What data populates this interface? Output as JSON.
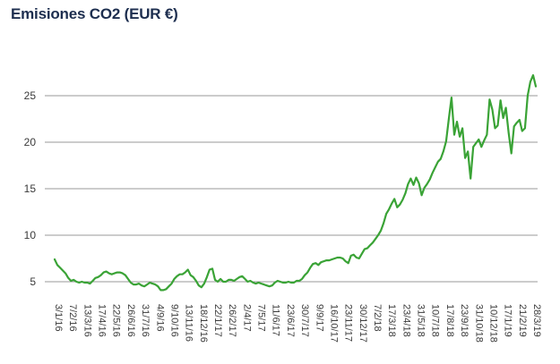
{
  "chart_data": {
    "type": "line",
    "title": "Emisiones CO2 (EUR €)",
    "xlabel": "",
    "ylabel": "",
    "ylim": [
      3,
      28
    ],
    "yticks": [
      5,
      10,
      15,
      20,
      25
    ],
    "grid": true,
    "line_color": "#3aa336",
    "grid_color": "#9a9a9a",
    "xticks": [
      "3/1/16",
      "7/2/16",
      "13/3/16",
      "17/4/16",
      "22/5/16",
      "26/6/16",
      "31/7/16",
      "4/9/16",
      "9/10/16",
      "13/11/16",
      "18/12/16",
      "22/1/17",
      "26/2/17",
      "2/4/17",
      "7/5/17",
      "11/6/17",
      "23/6/17",
      "30/7/17",
      "9/9/17",
      "16/10/17",
      "23/11/17",
      "30/12/17",
      "7/2/18",
      "17/3/18",
      "23/4/18",
      "31/5/18",
      "10/7/18",
      "17/8/18",
      "23/9/18",
      "31/10/18",
      "10/12/18",
      "17/1/19",
      "21/2/19",
      "28/3/19"
    ],
    "series": [
      {
        "values": [
          7.4,
          6.8,
          6.5,
          6.2,
          5.9,
          5.4,
          5.1,
          5.2,
          5.0,
          4.9,
          5.0,
          4.9,
          4.9,
          4.8,
          5.1,
          5.4,
          5.5,
          5.7,
          6.0,
          6.1,
          5.9,
          5.8,
          5.9,
          6.0,
          6.0,
          5.9,
          5.7,
          5.3,
          4.9,
          4.7,
          4.7,
          4.8,
          4.6,
          4.5,
          4.7,
          4.9,
          4.8,
          4.7,
          4.5,
          4.1,
          4.1,
          4.2,
          4.5,
          4.8,
          5.3,
          5.6,
          5.8,
          5.8,
          6.0,
          6.3,
          5.7,
          5.5,
          5.1,
          4.6,
          4.4,
          4.8,
          5.5,
          6.3,
          6.4,
          5.2,
          5.0,
          5.3,
          5.0,
          5.0,
          5.2,
          5.2,
          5.1,
          5.3,
          5.5,
          5.6,
          5.3,
          5.0,
          5.1,
          4.9,
          4.8,
          4.9,
          4.8,
          4.7,
          4.6,
          4.5,
          4.6,
          4.9,
          5.1,
          5.0,
          4.9,
          4.9,
          5.0,
          4.9,
          4.9,
          5.1,
          5.1,
          5.3,
          5.7,
          6.0,
          6.5,
          6.9,
          7.0,
          6.8,
          7.1,
          7.2,
          7.3,
          7.3,
          7.4,
          7.5,
          7.6,
          7.6,
          7.5,
          7.2,
          7.0,
          7.8,
          7.9,
          7.6,
          7.5,
          8.0,
          8.5,
          8.6,
          8.9,
          9.2,
          9.6,
          10.0,
          10.5,
          11.3,
          12.3,
          12.8,
          13.4,
          13.9,
          13.0,
          13.3,
          13.8,
          14.5,
          15.5,
          16.1,
          15.4,
          16.2,
          15.6,
          14.3,
          15.1,
          15.5,
          16.0,
          16.7,
          17.3,
          17.9,
          18.2,
          19.0,
          20.1,
          22.5,
          24.8,
          20.8,
          22.2,
          20.6,
          21.5,
          18.3,
          19.0,
          16.1,
          19.5,
          19.9,
          20.3,
          19.5,
          20.2,
          20.8,
          24.6,
          23.5,
          21.5,
          21.8,
          24.5,
          22.6,
          23.7,
          21.0,
          18.8,
          21.7,
          22.1,
          22.4,
          21.2,
          21.5,
          25.0,
          26.5,
          27.2,
          26.0
        ]
      }
    ]
  }
}
